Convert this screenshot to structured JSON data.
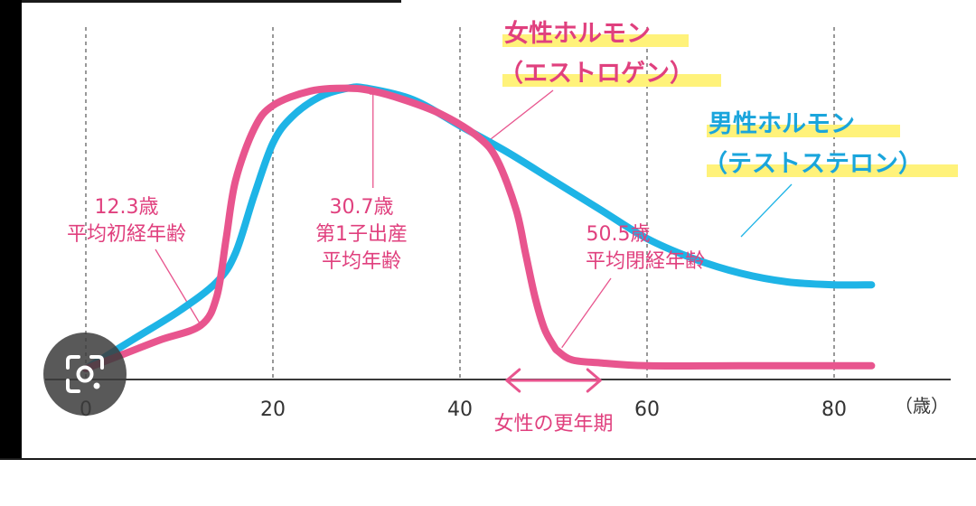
{
  "chart_data": {
    "type": "line",
    "x_unit": "（歳）",
    "x_ticks": [
      0,
      20,
      40,
      60,
      80
    ],
    "xlim": [
      0,
      85
    ],
    "ylim": [
      0,
      100
    ],
    "grid_x": true,
    "series": [
      {
        "name": "男性ホルモン（テストステロン）",
        "name_line1": "男性ホルモン",
        "name_line2": "（テストステロン）",
        "color": "#1eb4e6",
        "x": [
          0,
          5,
          10,
          14,
          16,
          18,
          20,
          22,
          25,
          28,
          30,
          35,
          40,
          45,
          50,
          55,
          60,
          65,
          70,
          75,
          80,
          84
        ],
        "y": [
          0,
          10,
          20,
          30,
          40,
          60,
          78,
          87,
          94,
          97,
          97,
          93,
          84,
          75,
          65,
          55,
          45,
          38,
          33,
          30,
          29,
          29
        ]
      },
      {
        "name": "女性ホルモン（エストロゲン）",
        "name_line1": "女性ホルモン",
        "name_line2": "（エストロゲン）",
        "color": "#e8558e",
        "x": [
          0,
          4,
          8,
          12.3,
          14,
          15,
          16,
          18,
          20,
          24,
          28,
          30.7,
          34,
          38,
          42,
          44,
          46,
          47,
          48,
          49,
          50,
          50.5,
          52,
          55,
          60,
          70,
          84
        ],
        "y": [
          0,
          5,
          10,
          15,
          25,
          45,
          65,
          83,
          91,
          96,
          97,
          96,
          93,
          88,
          80,
          72,
          55,
          40,
          25,
          14,
          8,
          6,
          3,
          2,
          1,
          1,
          1
        ]
      }
    ],
    "annotations": [
      {
        "id": "menarche",
        "line1": "12.3歳",
        "line2": "平均初経年齢",
        "x": 12.3
      },
      {
        "id": "first-birth",
        "line1": "30.7歳",
        "line2": "第1子出産",
        "line3": "平均年齢",
        "x": 30.7
      },
      {
        "id": "menopause",
        "line1": "50.5歳",
        "line2": "平均閉経年齢",
        "x": 50.5
      }
    ],
    "range_annotation": {
      "label": "女性の更年期",
      "x_start": 45,
      "x_end": 55
    }
  },
  "colors": {
    "male": "#1eb4e6",
    "female": "#e8558e",
    "female_text": "#e0407e",
    "male_text": "#1aa5dc",
    "highlight": "#fff27a",
    "axis": "#3a3a3a",
    "grid": "#555555"
  },
  "icons": {
    "lens": "google-lens-icon"
  }
}
